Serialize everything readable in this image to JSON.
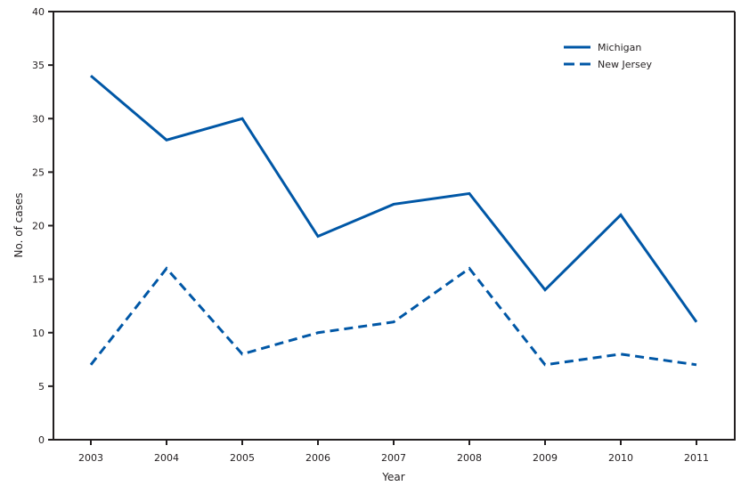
{
  "chart_data": {
    "type": "line",
    "title": "",
    "xlabel": "Year",
    "ylabel": "No. of cases",
    "categories": [
      "2003",
      "2004",
      "2005",
      "2006",
      "2007",
      "2008",
      "2009",
      "2010",
      "2011"
    ],
    "x": [
      2003,
      2004,
      2005,
      2006,
      2007,
      2008,
      2009,
      2010,
      2011
    ],
    "series": [
      {
        "name": "Michigan",
        "style": "solid",
        "color": "#0057a6",
        "values": [
          34,
          28,
          30,
          19,
          22,
          23,
          14,
          21,
          11
        ]
      },
      {
        "name": "New Jersey",
        "style": "dashed",
        "color": "#0057a6",
        "values": [
          7,
          16,
          8,
          10,
          11,
          16,
          7,
          8,
          7
        ]
      }
    ],
    "ylim": [
      0,
      40
    ],
    "yticks": [
      0,
      5,
      10,
      15,
      20,
      25,
      30,
      35,
      40
    ],
    "grid": false,
    "legend_position": "top-right"
  },
  "colors": {
    "line": "#0057a6",
    "axis": "#231f20",
    "background": "#ffffff"
  }
}
